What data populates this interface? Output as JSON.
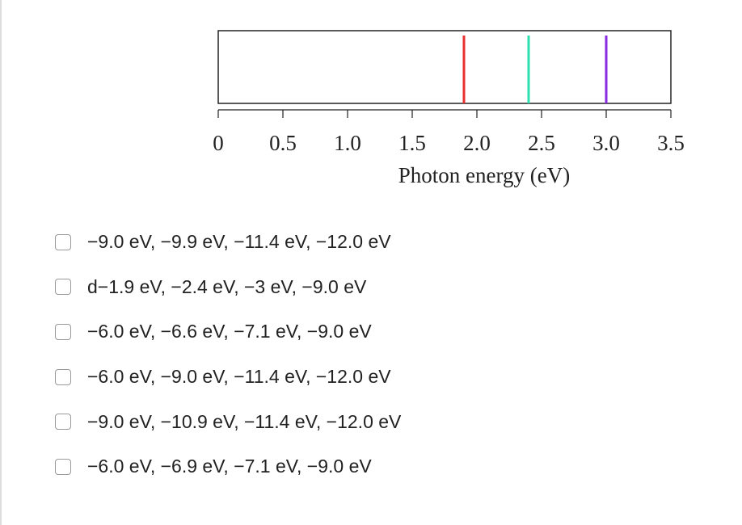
{
  "chart_data": {
    "type": "spectrum",
    "x_label": "Photon energy (eV)",
    "values": [
      1.9,
      2.4,
      3.0
    ],
    "colors": [
      "#e8302f",
      "#2ee0b0",
      "#8a2be2"
    ],
    "xlim": [
      0,
      3.5
    ],
    "xticks": [
      0,
      0.5,
      {
        "value": 1,
        "label": "1.0"
      },
      1.5,
      {
        "value": 2,
        "label": "2.0"
      },
      2.5,
      {
        "value": 3,
        "label": "3.0"
      },
      3.5
    ]
  },
  "options": [
    "−9.0 eV, −9.9 eV, −11.4 eV, −12.0 eV",
    "d−1.9 eV, −2.4 eV, −3 eV, −9.0 eV",
    "−6.0 eV, −6.6 eV, −7.1 eV, −9.0 eV",
    "−6.0 eV, −9.0 eV, −11.4 eV, −12.0 eV",
    "−9.0 eV, −10.9 eV, −11.4 eV, −12.0 eV",
    "−6.0 eV, −6.9 eV, −7.1 eV, −9.0 eV"
  ]
}
